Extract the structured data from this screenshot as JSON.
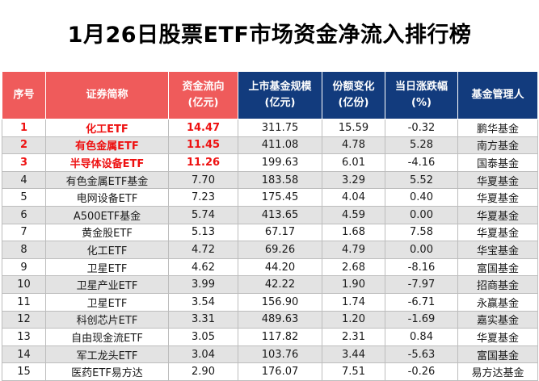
{
  "title": "1月26日股票ETF市场资金净流入排行榜",
  "headers": [
    {
      "lines": [
        "序号"
      ]
    },
    {
      "lines": [
        "证券简称"
      ]
    },
    {
      "lines": [
        "资金流向",
        "(亿元)"
      ]
    },
    {
      "lines": [
        "上市基金规模",
        "(亿元)"
      ]
    },
    {
      "lines": [
        "份额变化",
        "(亿份)"
      ]
    },
    {
      "lines": [
        "当日涨跌幅",
        "(%)"
      ]
    },
    {
      "lines": [
        "基金管理人"
      ]
    }
  ],
  "rows": [
    {
      "rank": "1",
      "name": "化工ETF",
      "flow": "14.47",
      "scale": "311.75",
      "share_change": "15.59",
      "change_pct": "-0.32",
      "manager": "鹏华基金",
      "highlight": true
    },
    {
      "rank": "2",
      "name": "有色金属ETF",
      "flow": "11.45",
      "scale": "411.08",
      "share_change": "4.78",
      "change_pct": "5.28",
      "manager": "南方基金",
      "highlight": true
    },
    {
      "rank": "3",
      "name": "半导体设备ETF",
      "flow": "11.26",
      "scale": "199.63",
      "share_change": "6.01",
      "change_pct": "-4.16",
      "manager": "国泰基金",
      "highlight": true
    },
    {
      "rank": "4",
      "name": "有色金属ETF基金",
      "flow": "7.70",
      "scale": "183.58",
      "share_change": "3.29",
      "change_pct": "5.52",
      "manager": "华夏基金",
      "highlight": false
    },
    {
      "rank": "5",
      "name": "电网设备ETF",
      "flow": "7.23",
      "scale": "175.45",
      "share_change": "4.04",
      "change_pct": "0.40",
      "manager": "华夏基金",
      "highlight": false
    },
    {
      "rank": "6",
      "name": "A500ETF基金",
      "flow": "5.74",
      "scale": "413.65",
      "share_change": "4.59",
      "change_pct": "0.00",
      "manager": "华夏基金",
      "highlight": false
    },
    {
      "rank": "7",
      "name": "黄金股ETF",
      "flow": "5.13",
      "scale": "67.17",
      "share_change": "1.68",
      "change_pct": "7.58",
      "manager": "华夏基金",
      "highlight": false
    },
    {
      "rank": "8",
      "name": "化工ETF",
      "flow": "4.72",
      "scale": "69.26",
      "share_change": "4.79",
      "change_pct": "0.00",
      "manager": "华宝基金",
      "highlight": false
    },
    {
      "rank": "9",
      "name": "卫星ETF",
      "flow": "4.62",
      "scale": "44.20",
      "share_change": "2.68",
      "change_pct": "-8.16",
      "manager": "富国基金",
      "highlight": false
    },
    {
      "rank": "10",
      "name": "卫星产业ETF",
      "flow": "3.99",
      "scale": "42.22",
      "share_change": "1.90",
      "change_pct": "-7.97",
      "manager": "招商基金",
      "highlight": false
    },
    {
      "rank": "11",
      "name": "卫星ETF",
      "flow": "3.54",
      "scale": "156.90",
      "share_change": "1.74",
      "change_pct": "-6.71",
      "manager": "永赢基金",
      "highlight": false
    },
    {
      "rank": "12",
      "name": "科创芯片ETF",
      "flow": "3.31",
      "scale": "489.63",
      "share_change": "1.20",
      "change_pct": "-1.69",
      "manager": "嘉实基金",
      "highlight": false
    },
    {
      "rank": "13",
      "name": "自由现金流ETF",
      "flow": "3.05",
      "scale": "117.82",
      "share_change": "2.31",
      "change_pct": "0.84",
      "manager": "华夏基金",
      "highlight": false
    },
    {
      "rank": "14",
      "name": "军工龙头ETF",
      "flow": "3.04",
      "scale": "103.76",
      "share_change": "3.44",
      "change_pct": "-5.63",
      "manager": "富国基金",
      "highlight": false
    },
    {
      "rank": "15",
      "name": "医药ETF易方达",
      "flow": "2.90",
      "scale": "176.07",
      "share_change": "7.51",
      "change_pct": "-0.26",
      "manager": "易方达基金",
      "highlight": false
    }
  ],
  "colors": {
    "header_red": "#ef5b5b",
    "header_navy": "#123b7d",
    "highlight_text": "#ee1111",
    "stripe_gray": "#e3e3e3"
  }
}
